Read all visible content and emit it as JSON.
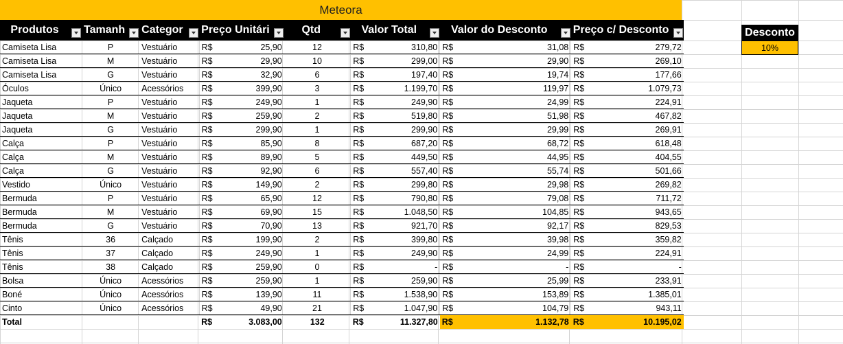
{
  "title": "Meteora",
  "columns": [
    "Produtos",
    "Tamanh",
    "Categor",
    "Preço Unitári",
    "Qtd",
    "Valor Total",
    "Valor do Desconto",
    "Preço c/ Desconto"
  ],
  "currency": "R$",
  "rows": [
    [
      "Camiseta Lisa",
      "P",
      "Vestuário",
      "25,90",
      "12",
      "310,80",
      "31,08",
      "279,72"
    ],
    [
      "Camiseta Lisa",
      "M",
      "Vestuário",
      "29,90",
      "10",
      "299,00",
      "29,90",
      "269,10"
    ],
    [
      "Camiseta Lisa",
      "G",
      "Vestuário",
      "32,90",
      "6",
      "197,40",
      "19,74",
      "177,66"
    ],
    [
      "Óculos",
      "Único",
      "Acessórios",
      "399,90",
      "3",
      "1.199,70",
      "119,97",
      "1.079,73"
    ],
    [
      "Jaqueta",
      "P",
      "Vestuário",
      "249,90",
      "1",
      "249,90",
      "24,99",
      "224,91"
    ],
    [
      "Jaqueta",
      "M",
      "Vestuário",
      "259,90",
      "2",
      "519,80",
      "51,98",
      "467,82"
    ],
    [
      "Jaqueta",
      "G",
      "Vestuário",
      "299,90",
      "1",
      "299,90",
      "29,99",
      "269,91"
    ],
    [
      "Calça",
      "P",
      "Vestuário",
      "85,90",
      "8",
      "687,20",
      "68,72",
      "618,48"
    ],
    [
      "Calça",
      "M",
      "Vestuário",
      "89,90",
      "5",
      "449,50",
      "44,95",
      "404,55"
    ],
    [
      "Calça",
      "G",
      "Vestuário",
      "92,90",
      "6",
      "557,40",
      "55,74",
      "501,66"
    ],
    [
      "Vestido",
      "Único",
      "Vestuário",
      "149,90",
      "2",
      "299,80",
      "29,98",
      "269,82"
    ],
    [
      "Bermuda",
      "P",
      "Vestuário",
      "65,90",
      "12",
      "790,80",
      "79,08",
      "711,72"
    ],
    [
      "Bermuda",
      "M",
      "Vestuário",
      "69,90",
      "15",
      "1.048,50",
      "104,85",
      "943,65"
    ],
    [
      "Bermuda",
      "G",
      "Vestuário",
      "70,90",
      "13",
      "921,70",
      "92,17",
      "829,53"
    ],
    [
      "Tênis",
      "36",
      "Calçado",
      "199,90",
      "2",
      "399,80",
      "39,98",
      "359,82"
    ],
    [
      "Tênis",
      "37",
      "Calçado",
      "249,90",
      "1",
      "249,90",
      "24,99",
      "224,91"
    ],
    [
      "Tênis",
      "38",
      "Calçado",
      "259,90",
      "0",
      "-",
      "-",
      "-"
    ],
    [
      "Bolsa",
      "Único",
      "Acessórios",
      "259,90",
      "1",
      "259,90",
      "25,99",
      "233,91"
    ],
    [
      "Boné",
      "Único",
      "Acessórios",
      "139,90",
      "11",
      "1.538,90",
      "153,89",
      "1.385,01"
    ],
    [
      "Cinto",
      "Único",
      "Acessórios",
      "49,90",
      "21",
      "1.047,90",
      "104,79",
      "943,11"
    ]
  ],
  "total": {
    "label": "Total",
    "preco_unitario": "3.083,00",
    "qtd": "132",
    "valor_total": "11.327,80",
    "valor_desconto": "1.132,78",
    "preco_desconto": "10.195,02"
  },
  "discount": {
    "label": "Desconto",
    "value": "10%"
  },
  "colors": {
    "accent": "#FFC000",
    "header": "#000000",
    "grid": "#d4d4d4"
  }
}
